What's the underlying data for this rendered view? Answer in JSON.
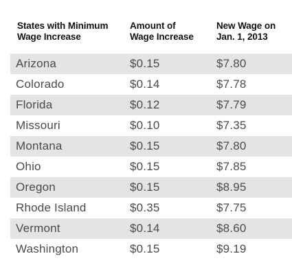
{
  "headers": {
    "state": [
      "States with Minimum",
      "Wage Increase"
    ],
    "amount": [
      "Amount of",
      "Wage Increase"
    ],
    "wage": [
      "New Wage on",
      "Jan. 1, 2013"
    ]
  },
  "rows": [
    {
      "state": "Arizona",
      "amount": "$0.15",
      "wage": "$7.80"
    },
    {
      "state": "Colorado",
      "amount": "$0.14",
      "wage": "$7.78"
    },
    {
      "state": "Florida",
      "amount": "$0.12",
      "wage": "$7.79"
    },
    {
      "state": "Missouri",
      "amount": "$0.10",
      "wage": "$7.35"
    },
    {
      "state": "Montana",
      "amount": "$0.15",
      "wage": "$7.80"
    },
    {
      "state": "Ohio",
      "amount": "$0.15",
      "wage": "$7.85"
    },
    {
      "state": "Oregon",
      "amount": "$0.15",
      "wage": "$8.95"
    },
    {
      "state": "Rhode Island",
      "amount": "$0.35",
      "wage": "$7.75"
    },
    {
      "state": "Vermont",
      "amount": "$0.14",
      "wage": "$8.60"
    },
    {
      "state": "Washington",
      "amount": "$0.15",
      "wage": "$9.19"
    }
  ],
  "colors": {
    "shaded_row": "#e4e4e4",
    "header_text": "#111111",
    "body_text": "#4a4a4a"
  }
}
